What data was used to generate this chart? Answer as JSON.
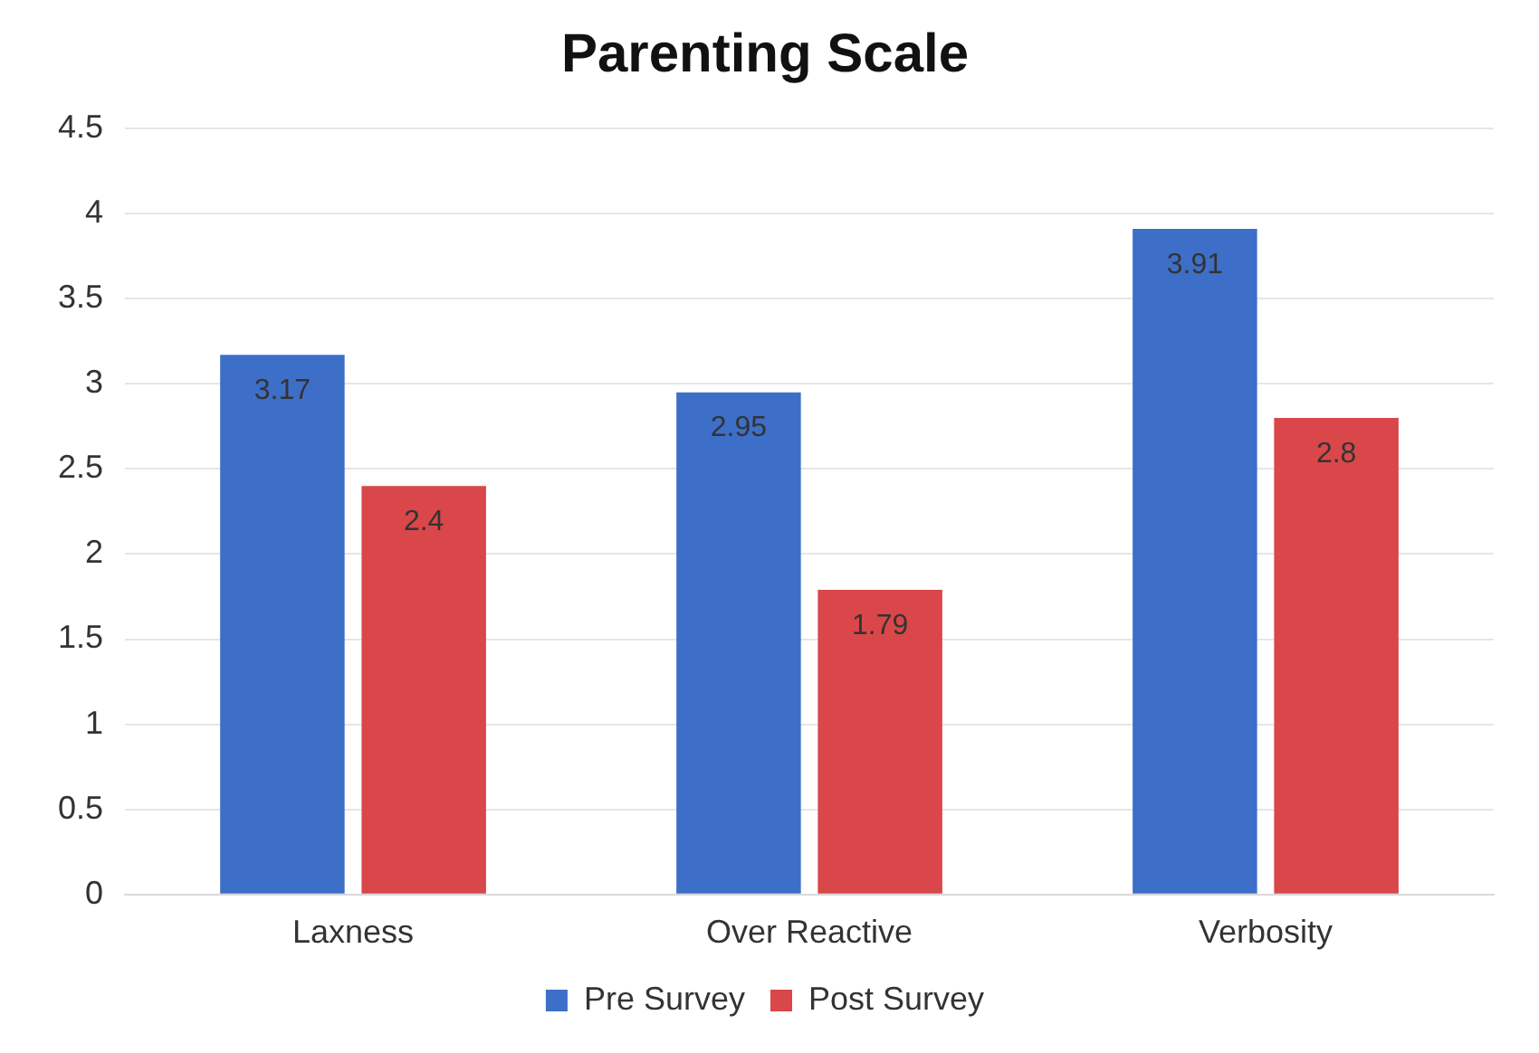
{
  "chart_data": {
    "type": "bar",
    "title": "Parenting Scale",
    "categories": [
      "Laxness",
      "Over Reactive",
      "Verbosity"
    ],
    "series": [
      {
        "name": "Pre Survey",
        "color": "#3d6fc8",
        "values": [
          3.17,
          2.95,
          3.91
        ]
      },
      {
        "name": "Post Survey",
        "color": "#d9474a",
        "values": [
          2.4,
          1.79,
          2.8
        ]
      }
    ],
    "ylim": [
      0,
      4.5
    ],
    "yticks": [
      0,
      0.5,
      1,
      1.5,
      2,
      2.5,
      3,
      3.5,
      4,
      4.5
    ],
    "grid": "y",
    "legend": "bottom",
    "data_labels": true
  }
}
